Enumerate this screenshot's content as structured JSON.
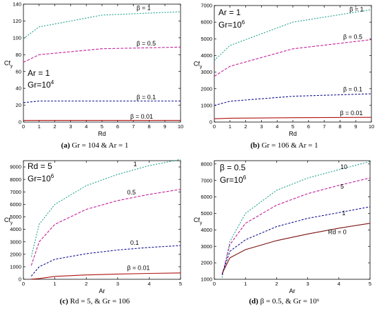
{
  "chart_data": [
    {
      "type": "line",
      "ylabel": "Cf",
      "ylabel_sub": "y",
      "xlabel": "Rd",
      "xlim": [
        0,
        10
      ],
      "ylim": [
        0,
        140
      ],
      "xticks": [
        0,
        1,
        2,
        3,
        4,
        5,
        6,
        7,
        8,
        9,
        10
      ],
      "yticks": [
        0,
        20,
        40,
        60,
        80,
        100,
        120,
        140
      ],
      "annotation": [
        "Ar = 1",
        "Gr=10",
        "4"
      ],
      "caption": {
        "label": "(a)",
        "text": " Gr = 104 & Ar = 1"
      },
      "series": [
        {
          "name": "β = 1",
          "color": "#1aa08c",
          "dash": "2,2",
          "x": [
            0,
            1,
            5,
            10
          ],
          "y": [
            99,
            113,
            127,
            131
          ],
          "label_at": [
            7.2,
            133
          ]
        },
        {
          "name": "β = 0.5",
          "color": "#c0209a",
          "dash": "4,2",
          "x": [
            0,
            1,
            5,
            10
          ],
          "y": [
            71,
            80,
            87,
            89
          ],
          "label_at": [
            7.2,
            91
          ]
        },
        {
          "name": "β = 0.1",
          "color": "#101090",
          "dash": "3,2",
          "x": [
            0,
            1,
            5,
            10
          ],
          "y": [
            23,
            25,
            25,
            25
          ],
          "label_at": [
            7.2,
            27
          ]
        },
        {
          "name": "β = 0.01",
          "color": "#b01010",
          "dash": "",
          "x": [
            0,
            1,
            5,
            10
          ],
          "y": [
            2,
            2,
            2,
            2
          ],
          "label_at": [
            6.8,
            4
          ]
        }
      ]
    },
    {
      "type": "line",
      "ylabel": "Cf",
      "ylabel_sub": "y",
      "xlabel": "Rd",
      "xlim": [
        0,
        10
      ],
      "ylim": [
        0,
        7000
      ],
      "xticks": [
        0,
        1,
        2,
        3,
        4,
        5,
        6,
        7,
        8,
        9,
        10
      ],
      "yticks": [
        0,
        1000,
        2000,
        3000,
        4000,
        5000,
        6000,
        7000
      ],
      "annotation": [
        "Ar = 1",
        "Gr=10",
        "6"
      ],
      "caption": {
        "label": "(b)",
        "text": " Gr = 106 & Ar = 1"
      },
      "series": [
        {
          "name": "β = 1",
          "color": "#1aa08c",
          "dash": "2,2",
          "x": [
            0,
            1,
            5,
            10
          ],
          "y": [
            3700,
            4600,
            6000,
            6750
          ],
          "label_at": [
            8.6,
            6650
          ]
        },
        {
          "name": "β = 0.5",
          "color": "#c0209a",
          "dash": "4,2",
          "x": [
            0,
            1,
            5,
            10
          ],
          "y": [
            2750,
            3350,
            4400,
            4950
          ],
          "label_at": [
            8.2,
            5000
          ]
        },
        {
          "name": "β = 0.1",
          "color": "#101090",
          "dash": "3,2",
          "x": [
            0,
            1,
            5,
            10
          ],
          "y": [
            1000,
            1250,
            1550,
            1700
          ],
          "label_at": [
            8.2,
            1850
          ]
        },
        {
          "name": "β = 0.01",
          "color": "#b01010",
          "dash": "",
          "x": [
            0,
            1,
            5,
            10
          ],
          "y": [
            200,
            230,
            260,
            280
          ],
          "label_at": [
            8.0,
            420
          ]
        }
      ]
    },
    {
      "type": "line",
      "ylabel": "Cf",
      "ylabel_sub": "y",
      "xlabel": "Ar",
      "xlim": [
        0,
        5
      ],
      "ylim": [
        0,
        9500
      ],
      "xticks": [
        0,
        1,
        2,
        3,
        4,
        5
      ],
      "yticks": [
        0,
        1000,
        2000,
        3000,
        4000,
        5000,
        6000,
        7000,
        8000,
        9000
      ],
      "annotation": [
        "Rd = 5",
        "Gr=10",
        "6"
      ],
      "caption": {
        "label": "(c)",
        "text": " Rd = 5, & Gr = 106"
      },
      "series": [
        {
          "name": "1",
          "color": "#1aa08c",
          "dash": "2,2",
          "x": [
            0.25,
            0.5,
            1,
            2,
            3,
            4,
            5
          ],
          "y": [
            1800,
            4400,
            6000,
            7500,
            8400,
            9100,
            9600
          ],
          "label_at": [
            3.5,
            9050
          ]
        },
        {
          "name": "0.5",
          "color": "#c0209a",
          "dash": "4,2",
          "x": [
            0.25,
            0.5,
            1,
            2,
            3,
            4,
            5
          ],
          "y": [
            1100,
            3000,
            4400,
            5600,
            6300,
            6800,
            7200
          ],
          "label_at": [
            3.3,
            6800
          ]
        },
        {
          "name": "0.1",
          "color": "#101090",
          "dash": "3,2",
          "x": [
            0.25,
            0.5,
            1,
            2,
            3,
            4,
            5
          ],
          "y": [
            250,
            1000,
            1600,
            2050,
            2350,
            2550,
            2700
          ],
          "label_at": [
            3.4,
            2750
          ]
        },
        {
          "name": "β = 0.01",
          "color": "#b01010",
          "dash": "",
          "x": [
            0.25,
            0.5,
            1,
            2,
            3,
            4,
            5
          ],
          "y": [
            10,
            60,
            230,
            350,
            420,
            470,
            510
          ],
          "label_at": [
            3.3,
            750
          ]
        }
      ]
    },
    {
      "type": "line",
      "ylabel": "Cf",
      "ylabel_sub": "y",
      "xlabel": "Ar",
      "xlim": [
        0,
        5
      ],
      "ylim": [
        1000,
        8200
      ],
      "xticks": [
        0,
        1,
        2,
        3,
        4,
        5
      ],
      "yticks": [
        1000,
        2000,
        3000,
        4000,
        5000,
        6000,
        7000,
        8000
      ],
      "annotation": [
        "β = 0.5",
        "Gr=10",
        "6"
      ],
      "caption": {
        "label": "(d)",
        "text": " β = 0.5, & Gr = 10⁶"
      },
      "series": [
        {
          "name": "10",
          "color": "#1aa08c",
          "dash": "2,2",
          "x": [
            0.25,
            0.5,
            1,
            2,
            3,
            4,
            5
          ],
          "y": [
            1100,
            3300,
            5000,
            6400,
            7150,
            7650,
            8150
          ],
          "label_at": [
            4.05,
            7700
          ]
        },
        {
          "name": "5",
          "color": "#c0209a",
          "dash": "4,2",
          "x": [
            0.25,
            0.5,
            1,
            2,
            3,
            4,
            5
          ],
          "y": [
            1250,
            3100,
            4400,
            5500,
            6200,
            6700,
            7150
          ],
          "label_at": [
            4.05,
            6500
          ]
        },
        {
          "name": "1",
          "color": "#101090",
          "dash": "3,2",
          "x": [
            0.25,
            0.5,
            1,
            2,
            3,
            4,
            5
          ],
          "y": [
            1300,
            2700,
            3400,
            4200,
            4700,
            5050,
            5400
          ],
          "label_at": [
            4.1,
            4900
          ]
        },
        {
          "name": "Rd = 0",
          "color": "#7a1010",
          "dash": "",
          "x": [
            0.25,
            0.5,
            1,
            2,
            3,
            4,
            5
          ],
          "y": [
            1350,
            2300,
            2800,
            3350,
            3750,
            4100,
            4400
          ],
          "label_at": [
            3.65,
            3750
          ]
        }
      ]
    }
  ]
}
